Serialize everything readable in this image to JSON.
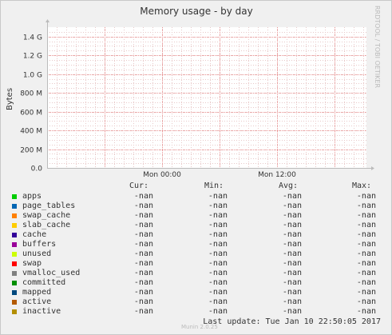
{
  "chart_data": {
    "type": "area",
    "title": "Memory usage - by day",
    "ylabel": "Bytes",
    "ytick_labels": [
      "0.0",
      "200 M",
      "400 M",
      "600 M",
      "800 M",
      "1.0 G",
      "1.2 G",
      "1.4 G"
    ],
    "yticks": [
      0,
      200000000,
      400000000,
      600000000,
      800000000,
      1000000000,
      1200000000,
      1400000000
    ],
    "ylim": [
      0,
      1500000000
    ],
    "xtick_labels": [
      "Mon 00:00",
      "Mon 12:00"
    ],
    "grid": true,
    "watermark": "RRDTOOL / TOBI OETIKER",
    "series": []
  },
  "legend": {
    "headers": {
      "cur": "Cur:",
      "min": "Min:",
      "avg": "Avg:",
      "max": "Max:"
    },
    "items": [
      {
        "name": "apps",
        "color": "#00cc00",
        "cur": "-nan",
        "min": "-nan",
        "avg": "-nan",
        "max": "-nan"
      },
      {
        "name": "page_tables",
        "color": "#0066b3",
        "cur": "-nan",
        "min": "-nan",
        "avg": "-nan",
        "max": "-nan"
      },
      {
        "name": "swap_cache",
        "color": "#ff8000",
        "cur": "-nan",
        "min": "-nan",
        "avg": "-nan",
        "max": "-nan"
      },
      {
        "name": "slab_cache",
        "color": "#ffcc00",
        "cur": "-nan",
        "min": "-nan",
        "avg": "-nan",
        "max": "-nan"
      },
      {
        "name": "cache",
        "color": "#330099",
        "cur": "-nan",
        "min": "-nan",
        "avg": "-nan",
        "max": "-nan"
      },
      {
        "name": "buffers",
        "color": "#990099",
        "cur": "-nan",
        "min": "-nan",
        "avg": "-nan",
        "max": "-nan"
      },
      {
        "name": "unused",
        "color": "#ccff00",
        "cur": "-nan",
        "min": "-nan",
        "avg": "-nan",
        "max": "-nan"
      },
      {
        "name": "swap",
        "color": "#ff0000",
        "cur": "-nan",
        "min": "-nan",
        "avg": "-nan",
        "max": "-nan"
      },
      {
        "name": "vmalloc_used",
        "color": "#808080",
        "cur": "-nan",
        "min": "-nan",
        "avg": "-nan",
        "max": "-nan"
      },
      {
        "name": "committed",
        "color": "#008f00",
        "cur": "-nan",
        "min": "-nan",
        "avg": "-nan",
        "max": "-nan"
      },
      {
        "name": "mapped",
        "color": "#00487d",
        "cur": "-nan",
        "min": "-nan",
        "avg": "-nan",
        "max": "-nan"
      },
      {
        "name": "active",
        "color": "#b35a00",
        "cur": "-nan",
        "min": "-nan",
        "avg": "-nan",
        "max": "-nan"
      },
      {
        "name": "inactive",
        "color": "#b38f00",
        "cur": "-nan",
        "min": "-nan",
        "avg": "-nan",
        "max": "-nan"
      }
    ]
  },
  "footer": {
    "munin_version": "Munin 2.0.25",
    "last_update": "Last update: Tue Jan 10 22:50:05 2017"
  }
}
